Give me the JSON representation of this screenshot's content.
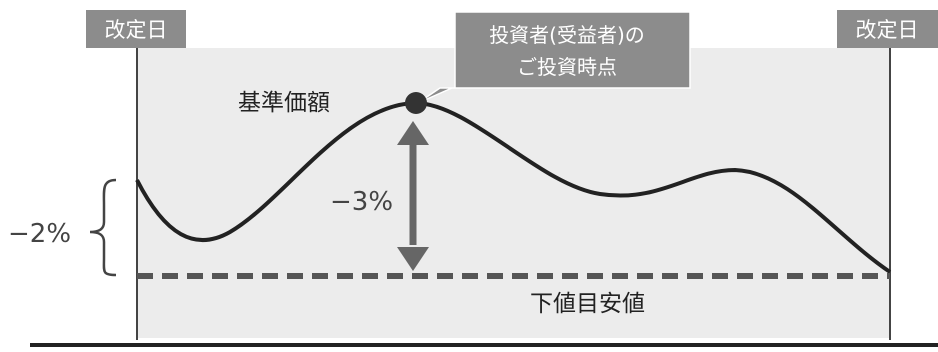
{
  "labels": {
    "revision_date_left": "改定日",
    "revision_date_right": "改定日",
    "investment_point_line1": "投資者(受益者)の",
    "investment_point_line2": "ご投資時点",
    "nav": "基準価額",
    "drop_3pct": "−3%",
    "drop_2pct": "−2%",
    "lower_target": "下値目安値"
  },
  "colors": {
    "panel_fill": "#ececec",
    "curve": "#222222",
    "arrow": "#666666",
    "label_box": "#8c8c8c",
    "label_text": "#ffffff",
    "dashed_line": "#555555",
    "text": "#333333"
  }
}
